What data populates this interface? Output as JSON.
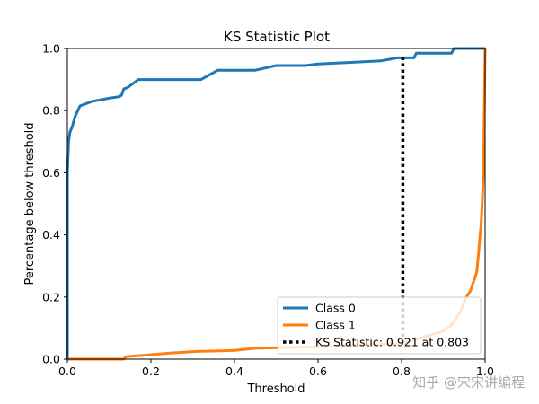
{
  "chart_data": {
    "type": "line",
    "title": "KS Statistic Plot",
    "xlabel": "Threshold",
    "ylabel": "Percentage below threshold",
    "xlim": [
      0.0,
      1.0
    ],
    "ylim": [
      0.0,
      1.0
    ],
    "xticks": [
      "0.0",
      "0.2",
      "0.4",
      "0.6",
      "0.8",
      "1.0"
    ],
    "yticks": [
      "0.0",
      "0.2",
      "0.4",
      "0.6",
      "0.8",
      "1.0"
    ],
    "grid": false,
    "legend_position": "lower-right",
    "series": [
      {
        "name": "Class 0",
        "color": "#1f77b4",
        "points": [
          [
            0.0,
            0.0
          ],
          [
            0.0,
            0.6
          ],
          [
            0.003,
            0.7
          ],
          [
            0.006,
            0.73
          ],
          [
            0.012,
            0.75
          ],
          [
            0.018,
            0.78
          ],
          [
            0.03,
            0.815
          ],
          [
            0.06,
            0.83
          ],
          [
            0.1,
            0.84
          ],
          [
            0.125,
            0.845
          ],
          [
            0.13,
            0.85
          ],
          [
            0.135,
            0.87
          ],
          [
            0.145,
            0.875
          ],
          [
            0.16,
            0.89
          ],
          [
            0.17,
            0.9
          ],
          [
            0.32,
            0.9
          ],
          [
            0.36,
            0.93
          ],
          [
            0.45,
            0.93
          ],
          [
            0.5,
            0.945
          ],
          [
            0.57,
            0.945
          ],
          [
            0.6,
            0.95
          ],
          [
            0.75,
            0.96
          ],
          [
            0.79,
            0.97
          ],
          [
            0.83,
            0.97
          ],
          [
            0.835,
            0.985
          ],
          [
            0.92,
            0.985
          ],
          [
            0.925,
            1.0
          ],
          [
            1.0,
            1.0
          ]
        ]
      },
      {
        "name": "Class 1",
        "color": "#ff7f0e",
        "points": [
          [
            0.0,
            0.0
          ],
          [
            0.135,
            0.0
          ],
          [
            0.14,
            0.008
          ],
          [
            0.18,
            0.012
          ],
          [
            0.25,
            0.02
          ],
          [
            0.31,
            0.025
          ],
          [
            0.4,
            0.028
          ],
          [
            0.45,
            0.035
          ],
          [
            0.6,
            0.04
          ],
          [
            0.7,
            0.045
          ],
          [
            0.8,
            0.05
          ],
          [
            0.85,
            0.07
          ],
          [
            0.9,
            0.09
          ],
          [
            0.92,
            0.11
          ],
          [
            0.94,
            0.15
          ],
          [
            0.955,
            0.2
          ],
          [
            0.965,
            0.22
          ],
          [
            0.975,
            0.26
          ],
          [
            0.98,
            0.28
          ],
          [
            0.985,
            0.35
          ],
          [
            0.988,
            0.4
          ],
          [
            0.99,
            0.43
          ],
          [
            0.993,
            0.5
          ],
          [
            0.996,
            0.6
          ],
          [
            0.998,
            0.8
          ],
          [
            1.0,
            1.0
          ]
        ]
      }
    ],
    "ks_line": {
      "label": "KS Statistic: 0.921 at 0.803",
      "x": 0.803,
      "y_start": 0.052,
      "y_end": 0.973,
      "color": "#000000"
    }
  },
  "watermark": "知乎 @宋宋讲编程"
}
